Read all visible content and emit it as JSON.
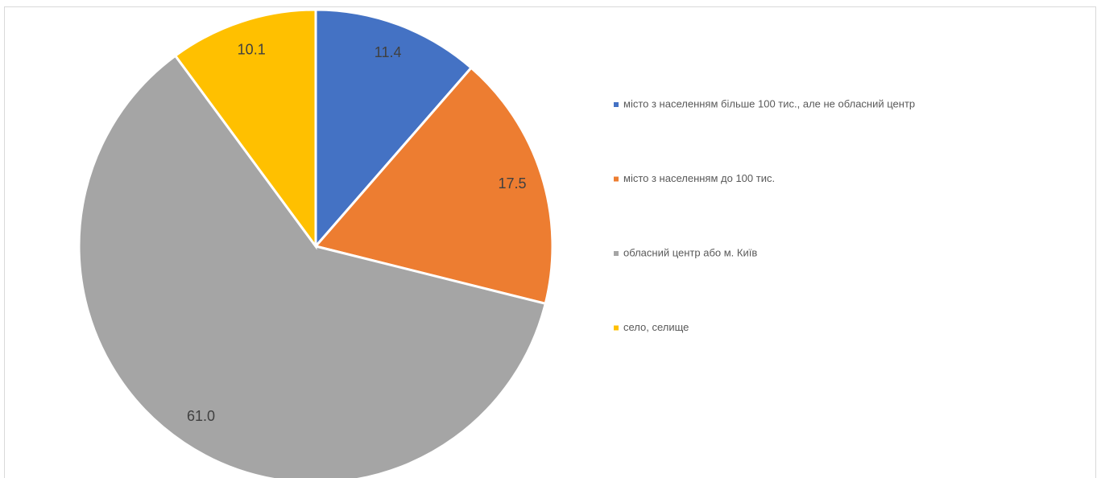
{
  "chart_data": {
    "type": "pie",
    "categories": [
      "місто з населенням більше 100 тис., але не обласний центр",
      "місто з населенням до 100 тис.",
      "обласний центр або м. Київ",
      "село, селище"
    ],
    "values": [
      11.4,
      17.5,
      61.0,
      10.1
    ],
    "value_labels": [
      "11.4",
      "17.5",
      "61.0",
      "10.1"
    ],
    "colors": [
      "#4472c4",
      "#ed7d31",
      "#a5a5a5",
      "#ffc000"
    ],
    "legend": "right"
  }
}
